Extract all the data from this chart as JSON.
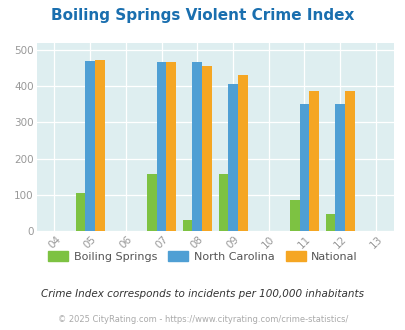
{
  "title": "Boiling Springs Violent Crime Index",
  "subtitle": "Crime Index corresponds to incidents per 100,000 inhabitants",
  "footer": "© 2025 CityRating.com - https://www.cityrating.com/crime-statistics/",
  "years": [
    2005,
    2007,
    2008,
    2009,
    2011,
    2012
  ],
  "boiling_springs": [
    106,
    158,
    30,
    158,
    85,
    47
  ],
  "north_carolina": [
    470,
    467,
    468,
    405,
    350,
    352
  ],
  "national": [
    472,
    468,
    455,
    432,
    387,
    387
  ],
  "color_bs": "#7dc242",
  "color_nc": "#4f9fd4",
  "color_nat": "#f5a623",
  "plot_bg": "#deeef0",
  "title_color": "#1a6faf",
  "legend_labels": [
    "Boiling Springs",
    "North Carolina",
    "National"
  ],
  "xlim": [
    2003.5,
    2013.5
  ],
  "ylim": [
    0,
    520
  ],
  "yticks": [
    0,
    100,
    200,
    300,
    400,
    500
  ],
  "xticks": [
    2004,
    2005,
    2006,
    2007,
    2008,
    2009,
    2010,
    2011,
    2012,
    2013
  ],
  "bar_width": 0.27
}
